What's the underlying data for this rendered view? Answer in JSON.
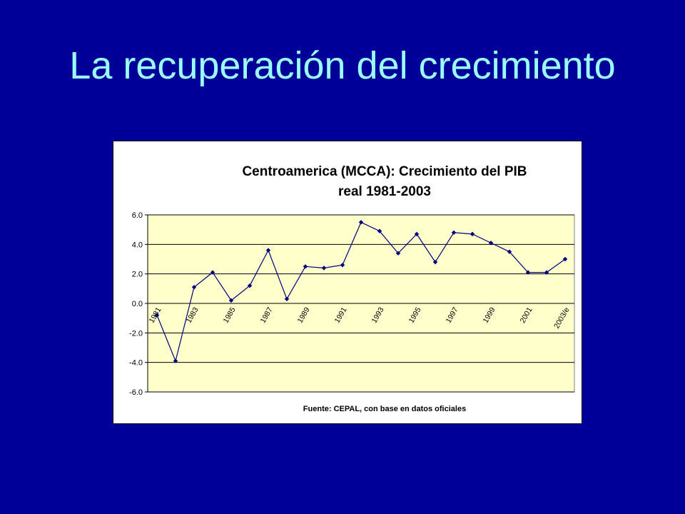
{
  "slide": {
    "title": "La recuperación del crecimiento"
  },
  "chart_data": {
    "type": "line",
    "title_line1": "Centroamerica (MCCA): Crecimiento del PIB",
    "title_line2": "real 1981-2003",
    "source": "Fuente: CEPAL, con base en datos oficiales",
    "x": [
      "1981",
      "1982",
      "1983",
      "1984",
      "1985",
      "1986",
      "1987",
      "1988",
      "1989",
      "1990",
      "1991",
      "1992",
      "1993",
      "1994",
      "1995",
      "1996",
      "1997",
      "1998",
      "1999",
      "2000",
      "2001",
      "2002",
      "2003/e"
    ],
    "x_tick_labels": [
      "1981",
      "1983",
      "1985",
      "1987",
      "1989",
      "1991",
      "1993",
      "1995",
      "1997",
      "1999",
      "2001",
      "2003/e"
    ],
    "series": [
      {
        "values": [
          -0.8,
          -3.9,
          1.1,
          2.1,
          0.2,
          1.2,
          3.6,
          0.3,
          2.5,
          2.4,
          2.6,
          5.5,
          4.9,
          3.4,
          4.7,
          2.8,
          4.8,
          4.7,
          4.1,
          3.5,
          2.1,
          2.1,
          3.0
        ],
        "color": "#000080"
      }
    ],
    "y_ticks": [
      "6.0",
      "4.0",
      "2.0",
      "0.0",
      "-2.0",
      "-4.0",
      "-6.0"
    ],
    "ylim": [
      -6.0,
      6.0
    ],
    "grid": true,
    "plot_background": "#FFFFCC"
  }
}
